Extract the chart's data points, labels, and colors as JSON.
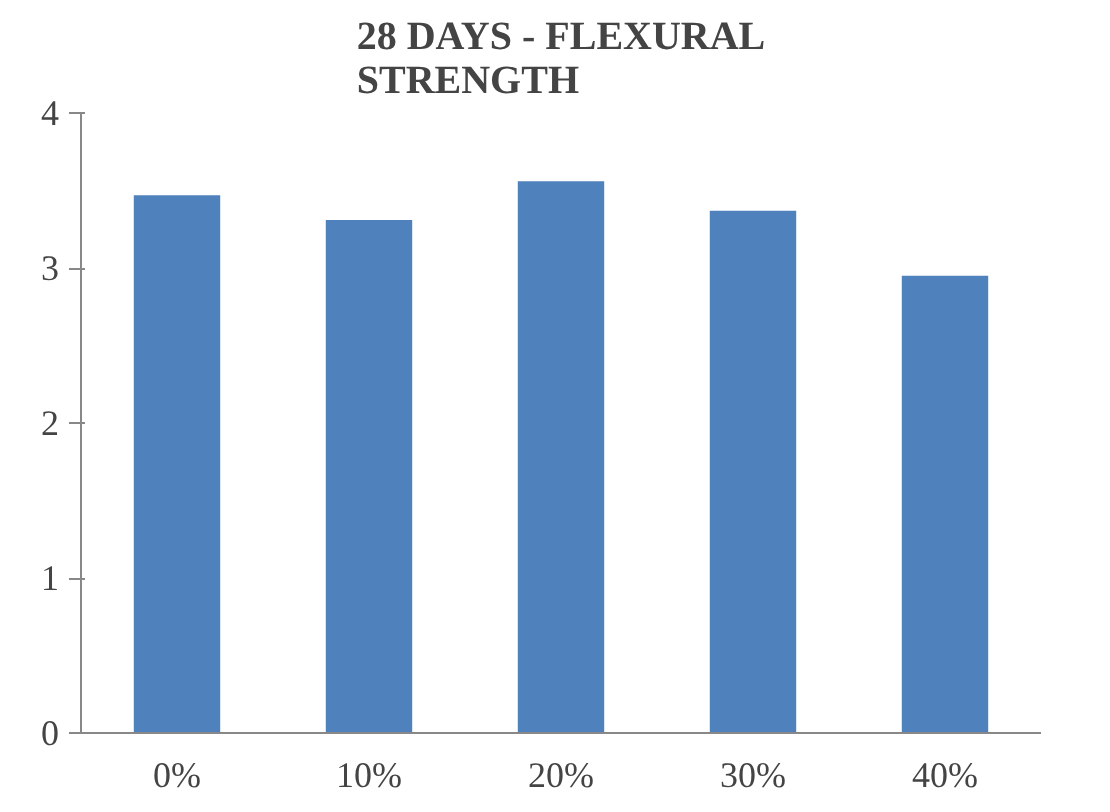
{
  "chart_data": {
    "type": "bar",
    "title": "28 DAYS - FLEXURAL STRENGTH",
    "categories": [
      "0%",
      "10%",
      "20%",
      "30%",
      "40%"
    ],
    "values": [
      3.47,
      3.31,
      3.56,
      3.37,
      2.95
    ],
    "color": "#4f81bd",
    "ylim": [
      0,
      4
    ],
    "yticks": [
      0,
      1,
      2,
      3,
      4
    ],
    "grid": false
  }
}
